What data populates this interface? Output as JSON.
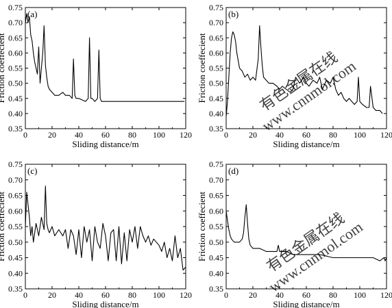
{
  "colors": {
    "line": "#000000",
    "axis": "#000000",
    "watermark": "#c9c9c9",
    "background": "#ffffff"
  },
  "watermark": {
    "text": "有色金属在线 www.cnnmol.com"
  },
  "chart_data": [
    {
      "type": "line",
      "panel_label": "(a)",
      "xlabel": "Sliding distance/m",
      "ylabel": "Friction coeffecient",
      "xlim": [
        0,
        120
      ],
      "ylim": [
        0.35,
        0.75
      ],
      "xticks": [
        0,
        20,
        40,
        60,
        80,
        100,
        120
      ],
      "yticks": [
        "0.35",
        "0.40",
        "0.45",
        "0.50",
        "0.55",
        "0.60",
        "0.65",
        "0.70",
        "0.75"
      ],
      "grid": false,
      "series": [
        {
          "x": [
            0,
            1,
            2,
            3,
            4,
            5,
            6,
            7,
            8,
            9,
            10,
            11,
            12,
            13,
            14,
            15,
            16,
            17,
            18,
            20,
            22,
            25,
            28,
            30,
            33,
            35,
            36,
            37,
            38,
            40,
            45,
            47,
            48,
            49,
            50,
            52,
            54,
            55,
            56,
            57,
            58,
            60,
            65,
            70,
            75,
            80,
            90,
            100,
            110,
            115,
            119
          ],
          "y": [
            0.7,
            0.73,
            0.7,
            0.72,
            0.66,
            0.64,
            0.6,
            0.57,
            0.55,
            0.53,
            0.62,
            0.5,
            0.55,
            0.6,
            0.69,
            0.56,
            0.52,
            0.49,
            0.48,
            0.47,
            0.46,
            0.46,
            0.47,
            0.46,
            0.46,
            0.45,
            0.58,
            0.46,
            0.45,
            0.45,
            0.44,
            0.45,
            0.65,
            0.45,
            0.45,
            0.44,
            0.45,
            0.61,
            0.45,
            0.44,
            0.44,
            0.44,
            0.44,
            0.44,
            0.44,
            0.44,
            0.44,
            0.44,
            0.44,
            0.44,
            0.44
          ]
        }
      ]
    },
    {
      "type": "line",
      "panel_label": "(b)",
      "xlabel": "Sliding distance/m",
      "ylabel": "Friction coeffecient",
      "xlim": [
        0,
        120
      ],
      "ylim": [
        0.35,
        0.75
      ],
      "xticks": [
        0,
        20,
        40,
        60,
        80,
        100,
        120
      ],
      "yticks": [
        "0.35",
        "0.40",
        "0.45",
        "0.50",
        "0.55",
        "0.60",
        "0.65",
        "0.70",
        "0.75"
      ],
      "grid": false,
      "series": [
        {
          "x": [
            0,
            1,
            2,
            3,
            4,
            5,
            6,
            7,
            8,
            10,
            12,
            14,
            16,
            18,
            20,
            22,
            24,
            25,
            26,
            27,
            28,
            30,
            32,
            35,
            38,
            40,
            42,
            45,
            48,
            50,
            52,
            55,
            58,
            60,
            62,
            65,
            68,
            70,
            72,
            75,
            78,
            80,
            82,
            84,
            86,
            88,
            90,
            92,
            94,
            96,
            98,
            99,
            100,
            102,
            105,
            107,
            108,
            110,
            112,
            115,
            117
          ],
          "y": [
            0.39,
            0.44,
            0.52,
            0.6,
            0.65,
            0.67,
            0.66,
            0.64,
            0.6,
            0.55,
            0.54,
            0.52,
            0.53,
            0.51,
            0.52,
            0.51,
            0.58,
            0.69,
            0.62,
            0.56,
            0.52,
            0.51,
            0.5,
            0.5,
            0.49,
            0.48,
            0.49,
            0.48,
            0.47,
            0.48,
            0.52,
            0.5,
            0.52,
            0.5,
            0.49,
            0.51,
            0.5,
            0.52,
            0.48,
            0.51,
            0.5,
            0.52,
            0.48,
            0.46,
            0.47,
            0.45,
            0.44,
            0.45,
            0.44,
            0.43,
            0.44,
            0.52,
            0.44,
            0.43,
            0.42,
            0.42,
            0.49,
            0.42,
            0.41,
            0.41,
            0.4
          ]
        }
      ]
    },
    {
      "type": "line",
      "panel_label": "(c)",
      "xlabel": "Sliding distance/m",
      "ylabel": "Friction coeffecient",
      "xlim": [
        0,
        120
      ],
      "ylim": [
        0.35,
        0.75
      ],
      "xticks": [
        0,
        20,
        40,
        60,
        80,
        100,
        120
      ],
      "yticks": [
        "0.35",
        "0.40",
        "0.45",
        "0.50",
        "0.55",
        "0.60",
        "0.65",
        "0.70",
        "0.75"
      ],
      "grid": false,
      "series": [
        {
          "x": [
            0,
            1,
            2,
            3,
            4,
            5,
            6,
            8,
            10,
            12,
            14,
            15,
            16,
            17,
            18,
            20,
            22,
            25,
            28,
            30,
            32,
            34,
            36,
            38,
            40,
            42,
            44,
            46,
            48,
            50,
            52,
            54,
            56,
            58,
            60,
            62,
            64,
            66,
            68,
            70,
            72,
            74,
            76,
            78,
            80,
            82,
            84,
            86,
            88,
            90,
            92,
            94,
            96,
            98,
            100,
            102,
            104,
            106,
            108,
            110,
            112,
            114,
            116,
            118,
            120
          ],
          "y": [
            0.55,
            0.66,
            0.62,
            0.58,
            0.52,
            0.55,
            0.5,
            0.56,
            0.52,
            0.58,
            0.54,
            0.68,
            0.56,
            0.54,
            0.53,
            0.55,
            0.52,
            0.54,
            0.52,
            0.54,
            0.48,
            0.54,
            0.52,
            0.46,
            0.54,
            0.45,
            0.55,
            0.5,
            0.54,
            0.44,
            0.55,
            0.5,
            0.48,
            0.56,
            0.52,
            0.44,
            0.53,
            0.54,
            0.44,
            0.55,
            0.43,
            0.53,
            0.44,
            0.54,
            0.5,
            0.55,
            0.48,
            0.55,
            0.52,
            0.5,
            0.52,
            0.49,
            0.51,
            0.5,
            0.49,
            0.47,
            0.5,
            0.45,
            0.48,
            0.44,
            0.52,
            0.45,
            0.48,
            0.41,
            0.42
          ]
        }
      ]
    },
    {
      "type": "line",
      "panel_label": "(d)",
      "xlabel": "Sliding distance/m",
      "ylabel": "Friction coeffecient",
      "xlim": [
        0,
        120
      ],
      "ylim": [
        0.35,
        0.75
      ],
      "xticks": [
        0,
        20,
        40,
        60,
        80,
        100,
        120
      ],
      "yticks": [
        "0.35",
        "0.40",
        "0.45",
        "0.50",
        "0.55",
        "0.60",
        "0.65",
        "0.70",
        "0.75"
      ],
      "grid": false,
      "series": [
        {
          "x": [
            0,
            1,
            2,
            3,
            4,
            6,
            8,
            10,
            12,
            13,
            14,
            15,
            16,
            17,
            18,
            20,
            25,
            30,
            35,
            38,
            39,
            40,
            45,
            50,
            55,
            60,
            70,
            80,
            90,
            100,
            110,
            115,
            118,
            119,
            120
          ],
          "y": [
            0.6,
            0.57,
            0.54,
            0.52,
            0.51,
            0.5,
            0.5,
            0.5,
            0.51,
            0.53,
            0.58,
            0.62,
            0.56,
            0.51,
            0.49,
            0.48,
            0.48,
            0.47,
            0.47,
            0.47,
            0.49,
            0.47,
            0.47,
            0.46,
            0.46,
            0.46,
            0.46,
            0.45,
            0.45,
            0.45,
            0.45,
            0.44,
            0.45,
            0.44,
            0.45
          ]
        }
      ]
    }
  ]
}
